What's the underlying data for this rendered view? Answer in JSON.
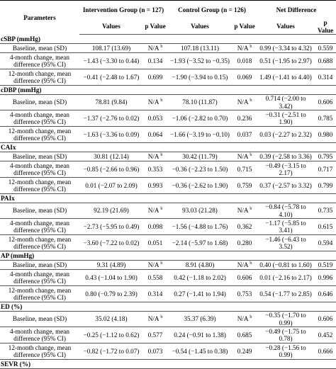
{
  "header": [
    "Parameters",
    "Intervention Group (n = 127)",
    "Control Group (n = 126)",
    "Net Difference"
  ],
  "subheader": [
    "Values",
    "p Value",
    "Values",
    "p Value",
    "Values",
    "p Value"
  ],
  "sections": [
    {
      "title": "cSBP (mmHg)",
      "rows": [
        [
          "Baseline, mean (SD)",
          "108.17 (13.69)",
          {
            "text": "N/A",
            "sup": "b"
          },
          "107.18 (13.11)",
          {
            "text": "N/A",
            "sup": "b"
          },
          "0.99 (−3.34 to 4.32)",
          "0.559"
        ],
        [
          "4-month change, mean difference (95% CI)",
          "−1.43 (−3.30 to 0.44)",
          "0.134",
          "−1.93 (−3.52 to −0.35)",
          "0.018",
          "0.51 (−1.95 to 2.97)",
          "0.688"
        ],
        [
          "12-month change, mean difference (95% CI)",
          "−0.41 (−2.48 to 1.67)",
          "0.699",
          "−1.90 (−3.94 to 0.15)",
          "0.069",
          "1.49 (−1.41 to 4.40)",
          "0.314"
        ]
      ]
    },
    {
      "title": "cDBP (mmHg)",
      "rows": [
        [
          "Baseline, mean (SD)",
          "78.81 (9.84)",
          {
            "text": "N/A",
            "sup": "b"
          },
          "78.10 (11.87)",
          {
            "text": "N/A",
            "sup": "b"
          },
          "0.714 (−2.00 to 3.42)",
          "0.606"
        ],
        [
          "4-month change, mean difference (95% CI)",
          "−1.37 (−2.76 to 0.02)",
          "0.053",
          "−1.06 (−2.82 to 0.70)",
          "0.236",
          "−0.31 (−2.51 to 1.90)",
          "0.785"
        ],
        [
          "12-month change, mean difference (95% CI)",
          "−1.63 (−3.36 to 0.09)",
          "0.064",
          "−1.66 (−3.19 to −0.10)",
          "0.037",
          "0.03 (−2.27 to 2.32)",
          "0.980"
        ]
      ]
    },
    {
      "title": "CAIx",
      "rows": [
        [
          "Baseline, mean (SD)",
          "30.81 (12.14)",
          {
            "text": "N/A",
            "sup": "b"
          },
          "30.42 (11.79)",
          {
            "text": "N/A",
            "sup": "b"
          },
          "0.39 (−2.58 to 3.36)",
          "0.795"
        ],
        [
          "4-month change, mean difference (95% CI)",
          "−0.85 (−2.66 to 0.96)",
          "0.353",
          "−0.36 (−2.23 to 1.50)",
          "0.715",
          "−0.49 (−3.15 to 2.17)",
          "0.717"
        ],
        [
          "12-month change, mean difference (95% CI)",
          "0.01 (−2.07 to 2.09)",
          "0.993",
          "−0.36 (−2.62 to 1.90)",
          "0.759",
          "0.37 (−2.57 to 3.32)",
          "0.799"
        ]
      ]
    },
    {
      "title": "PAIx",
      "rows": [
        [
          "Baseline, mean (SD)",
          "92.19 (21.69)",
          {
            "text": "N/A",
            "sup": "b"
          },
          "93.03 (21.28)",
          {
            "text": "N/A",
            "sup": "b"
          },
          "−0.84 (−5.78 to 4.10)",
          "0.735"
        ],
        [
          "4-month change, mean difference (95% CI)",
          "−2.73 (−5.95 to 0.49)",
          "0.098",
          "−1.56 (−4.88 to 1.76)",
          "0.362",
          "−1.17 (−5.85 to 3.41)",
          "0.615"
        ],
        [
          "12-month change, mean difference (95% CI)",
          "−3.60 (−7.22 to 0.02)",
          "0.051",
          "−2.14 (−5.97 to 1.68)",
          "0.280",
          "−1.46 (−6.43 to 3.52)",
          "0.594"
        ]
      ]
    },
    {
      "title": "AP (mmHg)",
      "rows": [
        [
          "Baseline, mean (SD)",
          "9.31 (4.89)",
          {
            "text": "N/A",
            "sup": "b"
          },
          "8.91 (4.80)",
          {
            "text": "N/A",
            "sup": "b"
          },
          "0.40 (−0.81 to 1.60)",
          "0.519"
        ],
        [
          "4-month change, mean difference (95% CI)",
          "0.43 (−1.04 to 1.90)",
          "0.558",
          "0.42 (−1.18 to 2.02)",
          "0.606",
          "0.01 (−2.16 to 2.17)",
          "0.996"
        ],
        [
          "12-month change, mean difference (95% CI)",
          "0.80 (−0.79 to 2.39)",
          "0.314",
          "0.27 (−1.41 to 1.94)",
          "0.753",
          "0.54 (−1.77 to 2.85)",
          "0.646"
        ]
      ]
    },
    {
      "title": "ED (%)",
      "rows": [
        [
          "Baseline, mean (SD)",
          "35.02 (4.18)",
          {
            "text": "N/A",
            "sup": "b"
          },
          "35.37 (6.39)",
          {
            "text": "N/A",
            "sup": "b"
          },
          "−0.35 (−1.70 to 0.99)",
          "0.606"
        ],
        [
          "4-month change, mean difference (95% CI)",
          "−0.25 (−1.12 to 0.62)",
          "0.577",
          "0.24 (−0.91 to 1.38)",
          "0.685",
          "−0.49 (−1.75 to 0.78)",
          "0.452"
        ],
        [
          "12-month change, mean difference (95% CI)",
          "−0.82 (−1.72 to 0.07)",
          "0.073",
          "−0.54 (−1.45 to 0.38)",
          "0.249",
          "−0.28 (−1.56 to 0.99)",
          "0.666"
        ]
      ]
    },
    {
      "title": "SEVR (%)",
      "rows": []
    }
  ]
}
